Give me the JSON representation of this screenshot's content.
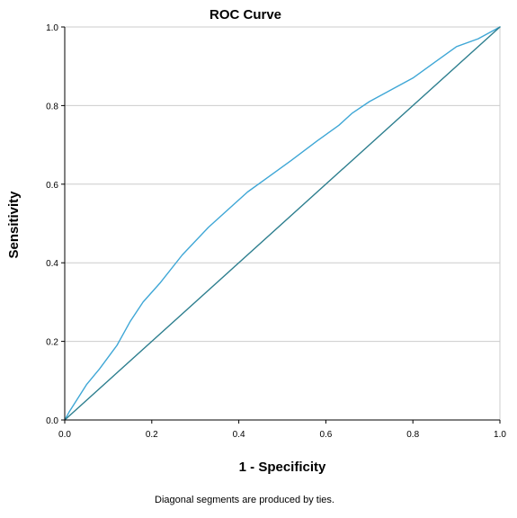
{
  "chart_data": {
    "type": "line",
    "title": "ROC Curve",
    "xlabel": "1 - Specificity",
    "ylabel": "Sensitivity",
    "footnote": "Diagonal segments are produced by ties.",
    "xlim": [
      0,
      1
    ],
    "ylim": [
      0,
      1
    ],
    "x_ticks": [
      "0.0",
      "0.2",
      "0.4",
      "0.6",
      "0.8",
      "1.0"
    ],
    "y_ticks": [
      "0.0",
      "0.2",
      "0.4",
      "0.6",
      "0.8",
      "1.0"
    ],
    "grid": "horizontal",
    "legend": "none",
    "series": [
      {
        "color": "#3fa7d6",
        "x": [
          0.0,
          0.01,
          0.05,
          0.08,
          0.12,
          0.15,
          0.18,
          0.22,
          0.27,
          0.33,
          0.38,
          0.42,
          0.47,
          0.52,
          0.58,
          0.63,
          0.66,
          0.7,
          0.75,
          0.8,
          0.85,
          0.9,
          0.95,
          1.0
        ],
        "y": [
          0.0,
          0.02,
          0.09,
          0.13,
          0.19,
          0.25,
          0.3,
          0.35,
          0.42,
          0.49,
          0.54,
          0.58,
          0.62,
          0.66,
          0.71,
          0.75,
          0.78,
          0.81,
          0.84,
          0.87,
          0.91,
          0.95,
          0.97,
          1.0
        ]
      },
      {
        "color": "#2e7f8f",
        "x": [
          0.0,
          1.0
        ],
        "y": [
          0.0,
          1.0
        ]
      }
    ]
  }
}
